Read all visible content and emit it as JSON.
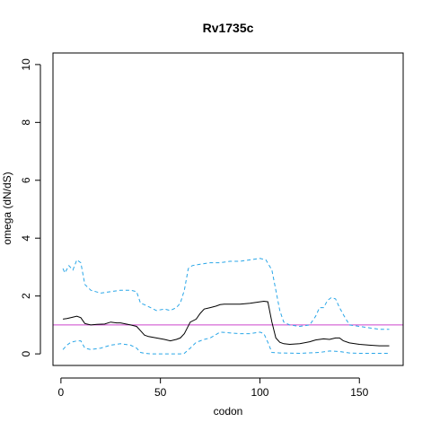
{
  "chart_data": {
    "type": "line",
    "title": "Rv1735c",
    "xlabel": "codon",
    "ylabel": "omega (dN/dS)",
    "xlim": [
      -4,
      172
    ],
    "ylim": [
      -0.4,
      10.4
    ],
    "xticks": [
      0,
      50,
      100,
      150
    ],
    "yticks": [
      0,
      2,
      4,
      6,
      8,
      10
    ],
    "grid": false,
    "reference_line": {
      "y": 1,
      "color": "#cc44cc"
    },
    "series": [
      {
        "style": "solid",
        "color": "#000000",
        "x": [
          1,
          3,
          5,
          8,
          10,
          12,
          15,
          18,
          22,
          25,
          28,
          30,
          35,
          38,
          40,
          42,
          44,
          48,
          52,
          55,
          58,
          60,
          62,
          65,
          68,
          70,
          72,
          75,
          78,
          80,
          82,
          85,
          90,
          95,
          100,
          102,
          104,
          106,
          108,
          110,
          112,
          115,
          120,
          125,
          128,
          130,
          132,
          135,
          138,
          140,
          142,
          145,
          150,
          155,
          160,
          165
        ],
        "y": [
          1.2,
          1.22,
          1.25,
          1.3,
          1.25,
          1.05,
          1.0,
          1.02,
          1.03,
          1.1,
          1.07,
          1.07,
          1.0,
          0.95,
          0.8,
          0.65,
          0.6,
          0.55,
          0.5,
          0.45,
          0.5,
          0.55,
          0.7,
          1.1,
          1.2,
          1.4,
          1.55,
          1.6,
          1.65,
          1.7,
          1.72,
          1.72,
          1.72,
          1.75,
          1.8,
          1.82,
          1.8,
          1.1,
          0.55,
          0.4,
          0.35,
          0.33,
          0.35,
          0.42,
          0.48,
          0.5,
          0.52,
          0.5,
          0.55,
          0.55,
          0.45,
          0.38,
          0.33,
          0.3,
          0.28,
          0.28
        ]
      },
      {
        "style": "dashed",
        "color": "#29a6e8",
        "x": [
          1,
          2,
          4,
          6,
          8,
          10,
          12,
          15,
          20,
          25,
          30,
          35,
          38,
          40,
          42,
          45,
          48,
          52,
          55,
          58,
          60,
          62,
          64,
          66,
          70,
          75,
          80,
          85,
          90,
          95,
          100,
          103,
          106,
          108,
          110,
          112,
          115,
          120,
          125,
          128,
          130,
          132,
          134,
          136,
          138,
          140,
          142,
          145,
          150,
          155,
          160,
          165
        ],
        "y": [
          2.95,
          2.8,
          3.05,
          2.9,
          3.25,
          3.15,
          2.4,
          2.2,
          2.1,
          2.15,
          2.2,
          2.2,
          2.15,
          1.75,
          1.7,
          1.6,
          1.5,
          1.55,
          1.5,
          1.6,
          1.75,
          2.2,
          2.95,
          3.05,
          3.1,
          3.15,
          3.15,
          3.2,
          3.2,
          3.25,
          3.3,
          3.25,
          2.9,
          2.2,
          1.5,
          1.1,
          1.0,
          0.95,
          1.0,
          1.3,
          1.6,
          1.6,
          1.85,
          1.95,
          1.9,
          1.6,
          1.35,
          1.0,
          0.95,
          0.9,
          0.85,
          0.85
        ]
      },
      {
        "style": "dashed",
        "color": "#29a6e8",
        "x": [
          1,
          3,
          5,
          8,
          10,
          12,
          15,
          20,
          25,
          30,
          35,
          38,
          40,
          42,
          45,
          48,
          52,
          55,
          58,
          60,
          62,
          65,
          68,
          70,
          72,
          75,
          80,
          90,
          95,
          100,
          102,
          104,
          106,
          110,
          120,
          130,
          135,
          140,
          145,
          150,
          160,
          165
        ],
        "y": [
          0.15,
          0.3,
          0.4,
          0.45,
          0.45,
          0.2,
          0.15,
          0.2,
          0.3,
          0.35,
          0.3,
          0.2,
          0.05,
          0.02,
          0.0,
          0.0,
          0.0,
          0.0,
          0.0,
          0.0,
          0.02,
          0.2,
          0.4,
          0.45,
          0.5,
          0.55,
          0.75,
          0.7,
          0.7,
          0.75,
          0.7,
          0.4,
          0.05,
          0.03,
          0.02,
          0.05,
          0.1,
          0.08,
          0.03,
          0.02,
          0.02,
          0.02
        ]
      }
    ]
  }
}
